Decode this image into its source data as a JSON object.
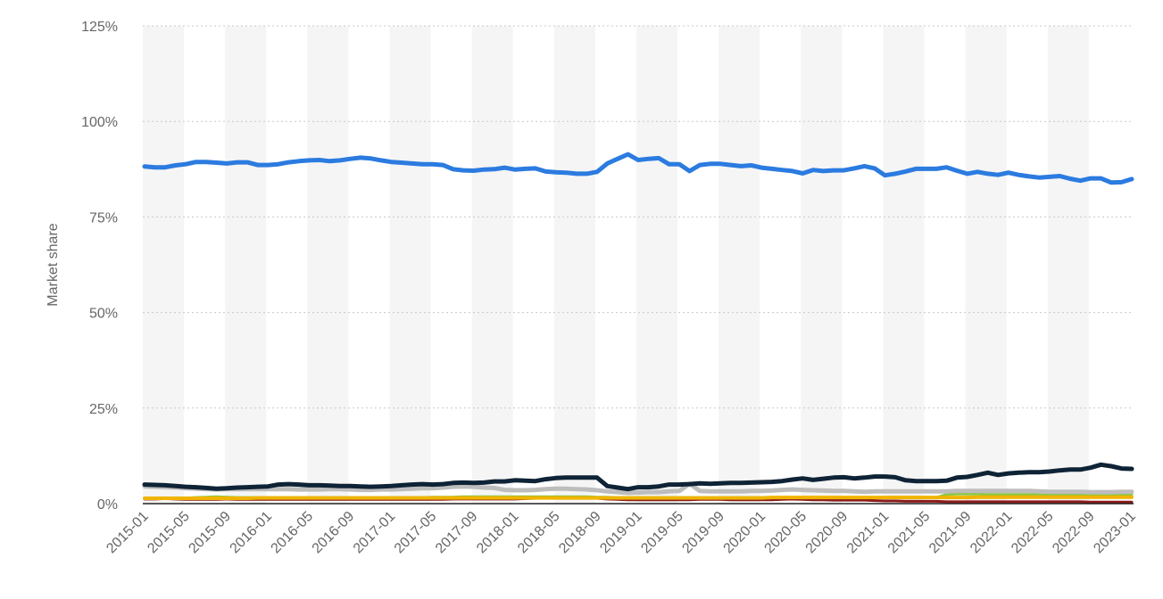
{
  "chart_data": {
    "type": "line",
    "y_label": "Market share",
    "categories": [
      "2015-01",
      null,
      null,
      null,
      "2015-05",
      null,
      null,
      null,
      "2015-09",
      null,
      null,
      null,
      "2016-01",
      null,
      null,
      null,
      "2016-05",
      null,
      null,
      null,
      "2016-09",
      null,
      null,
      null,
      "2017-01",
      null,
      null,
      null,
      "2017-05",
      null,
      null,
      null,
      "2017-09",
      null,
      null,
      null,
      "2018-01",
      null,
      null,
      null,
      "2018-05",
      null,
      null,
      null,
      "2018-09",
      null,
      null,
      null,
      "2019-01",
      null,
      null,
      null,
      "2019-05",
      null,
      null,
      null,
      "2019-09",
      null,
      null,
      null,
      "2020-01",
      null,
      null,
      null,
      "2020-05",
      null,
      null,
      null,
      "2020-09",
      null,
      null,
      null,
      "2021-01",
      null,
      null,
      null,
      "2021-05",
      null,
      null,
      null,
      "2021-09",
      null,
      null,
      null,
      "2022-01",
      null,
      null,
      null,
      "2022-05",
      null,
      null,
      null,
      "2022-09",
      null,
      null,
      null,
      "2023-01"
    ],
    "ylim": [
      0,
      125
    ],
    "yticks": [
      {
        "value": 0,
        "label": "0%"
      },
      {
        "value": 25,
        "label": "25%"
      },
      {
        "value": 50,
        "label": "50%"
      },
      {
        "value": 75,
        "label": "75%"
      },
      {
        "value": 100,
        "label": "100%"
      },
      {
        "value": 125,
        "label": "125%"
      }
    ],
    "grid": true,
    "series": [
      {
        "color": "#8b1a1a",
        "width": 3,
        "values": [
          1.2,
          1.2,
          1.3,
          1.2,
          1.1,
          1.1,
          1.1,
          1.1,
          1.2,
          1.1,
          1.1,
          1.1,
          1.1,
          1.1,
          1.1,
          1.1,
          1.1,
          1.1,
          1.1,
          1.1,
          1.1,
          1.1,
          1.1,
          1.1,
          1.1,
          1.1,
          1.1,
          1.1,
          1.1,
          1.1,
          1.2,
          1.2,
          1.2,
          1.2,
          1.2,
          1.2,
          1.2,
          1.3,
          1.4,
          1.5,
          1.6,
          1.6,
          1.6,
          1.5,
          1.4,
          1.2,
          1.1,
          1.0,
          1.0,
          1.0,
          1.0,
          1.0,
          1.0,
          1.0,
          1.1,
          1.1,
          1.1,
          1.0,
          1.0,
          1.0,
          1.0,
          1.0,
          1.1,
          1.2,
          1.1,
          1.0,
          1.0,
          0.9,
          0.9,
          0.9,
          0.9,
          0.8,
          0.7,
          0.7,
          0.6,
          0.6,
          0.6,
          0.6,
          0.5,
          0.5,
          0.5,
          0.5,
          0.5,
          0.5,
          0.5,
          0.5,
          0.5,
          0.5,
          0.5,
          0.5,
          0.5,
          0.5,
          0.4,
          0.4,
          0.4,
          0.4,
          0.4
        ]
      },
      {
        "color": "#8cc63f",
        "width": 3,
        "values": [
          1.5,
          1.5,
          1.5,
          1.5,
          1.5,
          1.6,
          1.7,
          1.8,
          1.7,
          1.6,
          1.6,
          1.6,
          1.6,
          1.6,
          1.6,
          1.6,
          1.6,
          1.6,
          1.6,
          1.6,
          1.6,
          1.6,
          1.6,
          1.6,
          1.6,
          1.6,
          1.6,
          1.6,
          1.7,
          1.7,
          1.7,
          1.8,
          1.8,
          1.8,
          1.8,
          1.8,
          1.8,
          1.8,
          1.8,
          1.8,
          1.8,
          1.8,
          1.8,
          1.8,
          1.7,
          1.7,
          1.6,
          1.6,
          1.6,
          1.6,
          1.6,
          1.6,
          1.6,
          1.6,
          1.6,
          1.6,
          1.6,
          1.6,
          1.6,
          1.6,
          1.6,
          1.6,
          1.6,
          1.6,
          1.6,
          1.6,
          1.6,
          1.6,
          1.6,
          1.6,
          1.6,
          1.6,
          1.6,
          1.6,
          1.6,
          1.6,
          1.6,
          1.6,
          2.4,
          2.5,
          2.5,
          2.5,
          2.4,
          2.4,
          2.4,
          2.4,
          2.4,
          2.3,
          2.3,
          2.4,
          2.4,
          2.3,
          2.3,
          2.3,
          2.3,
          2.4,
          2.4
        ]
      },
      {
        "color": "#f0b400",
        "width": 4,
        "values": [
          1.4,
          1.4,
          1.4,
          1.4,
          1.4,
          1.4,
          1.4,
          1.4,
          1.4,
          1.4,
          1.4,
          1.5,
          1.5,
          1.5,
          1.5,
          1.5,
          1.5,
          1.5,
          1.5,
          1.5,
          1.5,
          1.5,
          1.5,
          1.5,
          1.5,
          1.5,
          1.5,
          1.5,
          1.5,
          1.5,
          1.5,
          1.5,
          1.5,
          1.5,
          1.5,
          1.5,
          1.5,
          1.5,
          1.5,
          1.5,
          1.5,
          1.5,
          1.5,
          1.5,
          1.5,
          1.5,
          1.5,
          1.5,
          1.5,
          1.5,
          1.5,
          1.5,
          1.5,
          1.5,
          1.5,
          1.5,
          1.5,
          1.5,
          1.5,
          1.5,
          1.5,
          1.6,
          1.6,
          1.6,
          1.6,
          1.6,
          1.6,
          1.6,
          1.6,
          1.6,
          1.6,
          1.6,
          1.6,
          1.6,
          1.6,
          1.6,
          1.6,
          1.6,
          1.6,
          1.6,
          1.6,
          1.7,
          1.7,
          1.7,
          1.7,
          1.7,
          1.7,
          1.7,
          1.7,
          1.7,
          1.7,
          1.7,
          1.7,
          1.7,
          1.7,
          1.7,
          1.7
        ]
      },
      {
        "color": "#bdbdbd",
        "width": 5,
        "values": [
          4.5,
          4.4,
          4.3,
          4.2,
          4.0,
          3.9,
          3.8,
          3.7,
          3.8,
          3.8,
          3.8,
          3.8,
          3.8,
          3.8,
          3.8,
          3.7,
          3.7,
          3.7,
          3.8,
          3.8,
          3.7,
          3.6,
          3.6,
          3.7,
          3.7,
          3.8,
          3.9,
          4.0,
          4.0,
          4.2,
          4.4,
          4.5,
          4.4,
          4.2,
          4.1,
          3.6,
          3.5,
          3.5,
          3.6,
          3.8,
          3.9,
          3.9,
          3.8,
          3.7,
          3.5,
          3.2,
          3.0,
          2.8,
          2.9,
          3.0,
          3.0,
          3.2,
          3.3,
          5.2,
          3.3,
          3.2,
          3.2,
          3.2,
          3.2,
          3.3,
          3.3,
          3.4,
          3.6,
          3.7,
          3.6,
          3.5,
          3.4,
          3.3,
          3.3,
          3.2,
          3.1,
          3.2,
          3.2,
          3.2,
          3.2,
          3.2,
          3.2,
          3.2,
          3.2,
          3.3,
          3.3,
          3.3,
          3.3,
          3.3,
          3.3,
          3.3,
          3.3,
          3.2,
          3.1,
          3.1,
          3.1,
          3.1,
          3.0,
          3.0,
          3.0,
          3.1,
          3.1
        ]
      },
      {
        "color": "#0f2336",
        "width": 5,
        "values": [
          5.0,
          4.9,
          4.8,
          4.6,
          4.4,
          4.3,
          4.1,
          3.9,
          4.0,
          4.2,
          4.3,
          4.4,
          4.5,
          5.0,
          5.1,
          5.0,
          4.8,
          4.8,
          4.7,
          4.6,
          4.6,
          4.5,
          4.4,
          4.5,
          4.6,
          4.8,
          5.0,
          5.1,
          5.0,
          5.1,
          5.4,
          5.5,
          5.4,
          5.5,
          5.8,
          5.8,
          6.1,
          6.0,
          5.9,
          6.4,
          6.7,
          6.8,
          6.8,
          6.8,
          6.8,
          4.6,
          4.2,
          3.8,
          4.3,
          4.3,
          4.5,
          5.0,
          5.0,
          5.1,
          5.3,
          5.2,
          5.3,
          5.4,
          5.4,
          5.5,
          5.6,
          5.7,
          5.9,
          6.3,
          6.6,
          6.2,
          6.5,
          6.8,
          6.9,
          6.6,
          6.8,
          7.1,
          7.1,
          6.9,
          6.1,
          5.9,
          5.9,
          5.9,
          6.0,
          6.8,
          7.0,
          7.5,
          8.1,
          7.5,
          7.9,
          8.1,
          8.2,
          8.2,
          8.4,
          8.7,
          8.9,
          8.9,
          9.4,
          10.2,
          9.8,
          9.2,
          9.1
        ]
      },
      {
        "color": "#2b7be0",
        "width": 5,
        "values": [
          88.2,
          88.0,
          88.0,
          88.5,
          88.8,
          89.4,
          89.4,
          89.2,
          89.0,
          89.3,
          89.3,
          88.6,
          88.6,
          88.8,
          89.3,
          89.6,
          89.8,
          89.9,
          89.6,
          89.8,
          90.2,
          90.5,
          90.3,
          89.8,
          89.4,
          89.2,
          89.0,
          88.8,
          88.8,
          88.6,
          87.5,
          87.2,
          87.1,
          87.4,
          87.5,
          87.9,
          87.4,
          87.6,
          87.7,
          86.9,
          86.7,
          86.6,
          86.3,
          86.3,
          86.8,
          89.0,
          90.2,
          91.4,
          89.9,
          90.2,
          90.4,
          88.8,
          88.8,
          87.0,
          88.6,
          88.9,
          88.9,
          88.6,
          88.3,
          88.5,
          87.9,
          87.6,
          87.3,
          87.0,
          86.4,
          87.3,
          87.0,
          87.2,
          87.2,
          87.7,
          88.3,
          87.7,
          85.9,
          86.3,
          86.9,
          87.6,
          87.6,
          87.6,
          88.0,
          87.1,
          86.3,
          86.8,
          86.3,
          86.0,
          86.6,
          86.0,
          85.6,
          85.3,
          85.5,
          85.7,
          85.0,
          84.5,
          85.1,
          85.1,
          84.0,
          84.1,
          84.9
        ]
      }
    ]
  }
}
